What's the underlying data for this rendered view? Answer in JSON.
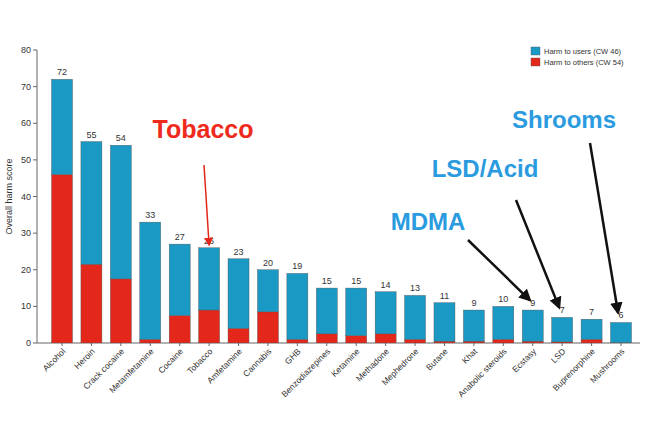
{
  "chart_data": {
    "type": "bar",
    "stacked": true,
    "y_label": "Overall harm score",
    "categories": [
      "Alcohol",
      "Heroin",
      "Crack cocaine",
      "Metamfetamine",
      "Cocaine",
      "Tobacco",
      "Amfetamine",
      "Cannabis",
      "GHB",
      "Benzodiazepines",
      "Ketamine",
      "Methadone",
      "Mephedrone",
      "Butane",
      "Khat",
      "Anabolic steroids",
      "Ecstasy",
      "LSD",
      "Buprenorphine",
      "Mushrooms"
    ],
    "series": [
      {
        "name": "Harm to users (CW 46)",
        "color": "#1a99c4",
        "values": [
          26,
          33.5,
          36.5,
          32,
          19.5,
          17,
          19,
          11.5,
          18,
          12.5,
          13,
          11.5,
          12,
          10.5,
          8.5,
          9,
          8.5,
          6.7,
          5.5,
          5.5
        ]
      },
      {
        "name": "Harm to others (CW 54)",
        "color": "#e3281b",
        "values": [
          46,
          21.5,
          17.5,
          1,
          7.5,
          9,
          4,
          8.5,
          1,
          2.5,
          2,
          2.5,
          1,
          0.5,
          0.5,
          1,
          0.5,
          0.3,
          1,
          0.1
        ]
      }
    ],
    "totals": [
      72,
      55,
      54,
      33,
      27,
      26,
      23,
      20,
      19,
      15,
      15,
      14,
      13,
      11,
      9,
      10,
      9,
      7,
      7,
      6
    ],
    "ylim": [
      0,
      80
    ],
    "yticks": [
      0,
      10,
      20,
      30,
      40,
      50,
      60,
      70,
      80
    ],
    "legend": "top-right",
    "annotations": [
      {
        "text": "Tobacco",
        "color": "#ee2a1d"
      },
      {
        "text": "MDMA",
        "color": "#2b9be0"
      },
      {
        "text": "LSD/Acid",
        "color": "#2b9be0"
      },
      {
        "text": "Shrooms",
        "color": "#2b9be0"
      }
    ]
  }
}
